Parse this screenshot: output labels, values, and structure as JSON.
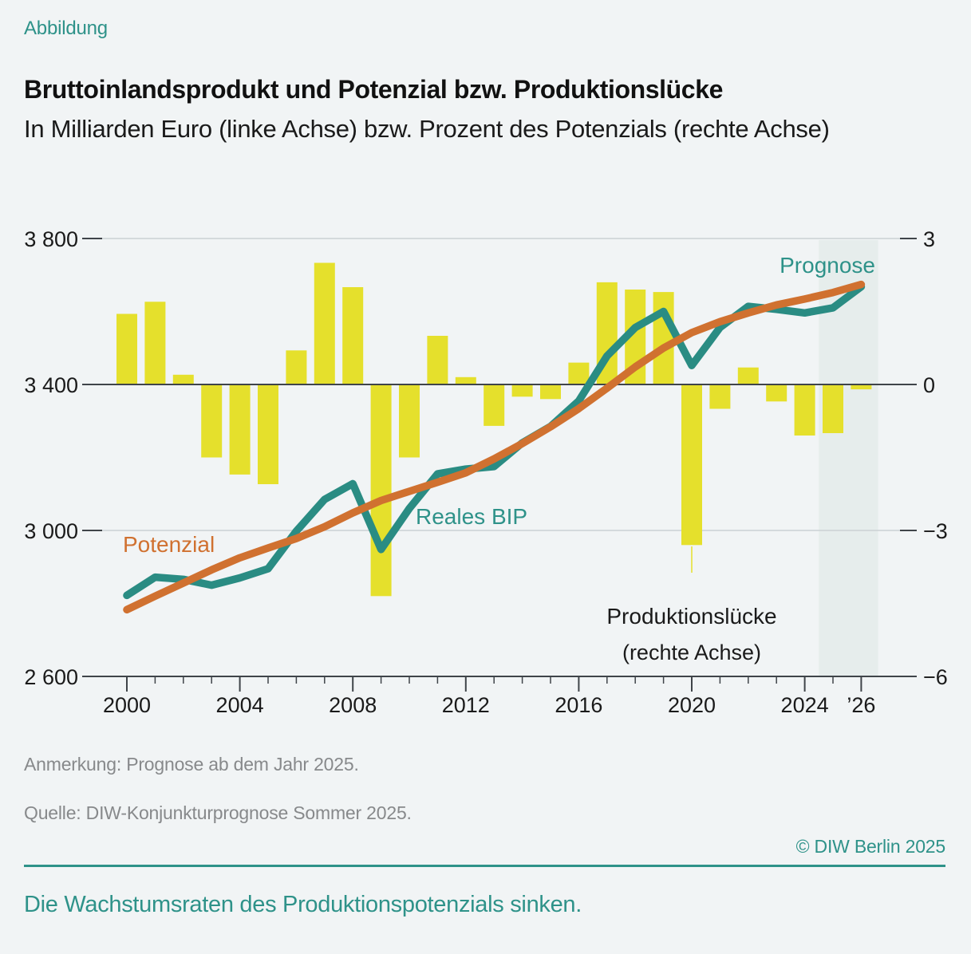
{
  "header": {
    "kicker": "Abbildung",
    "title": "Bruttoinlandsprodukt und Potenzial bzw. Produktionslücke",
    "subtitle": "In Milliarden Euro (linke Achse) bzw. Prozent des Potenzials (rechte Achse)"
  },
  "footer": {
    "note": "Anmerkung: Prognose ab dem Jahr 2025.",
    "source": "Quelle: DIW-Konjunkturprognose Sommer 2025.",
    "copyright": "© DIW Berlin 2025",
    "takeaway": "Die Wachstumsraten des Produktionspotenzials sinken."
  },
  "colors": {
    "background": "#f1f4f5",
    "teal": "#2e9289",
    "teal_line": "#2a8c83",
    "orange": "#d07130",
    "bar_yellow": "#e5e02c",
    "dark_text": "#1a1a1a",
    "axis_dark": "#3f4449",
    "gridline": "#cbd1d3",
    "gray_text": "#87898b",
    "forecast_band": "#e6edec"
  },
  "chart_data": {
    "type": "bar",
    "subtype": "combo-bar-line-dual-axis",
    "title": "Bruttoinlandsprodukt und Potenzial bzw. Produktionslücke",
    "xlabel": "",
    "ylabel_left": "Milliarden Euro",
    "ylabel_right": "Prozent des Potenzials",
    "x": [
      2000,
      2001,
      2002,
      2003,
      2004,
      2005,
      2006,
      2007,
      2008,
      2009,
      2010,
      2011,
      2012,
      2013,
      2014,
      2015,
      2016,
      2017,
      2018,
      2019,
      2020,
      2021,
      2022,
      2023,
      2024,
      2025,
      2026
    ],
    "series": [
      {
        "name": "Produktionslücke",
        "type": "bar",
        "axis": "right",
        "unit": "Prozent des Potenzials",
        "values": [
          1.45,
          1.7,
          0.2,
          -1.5,
          -1.85,
          -2.05,
          0.7,
          2.5,
          2.0,
          -4.35,
          -1.5,
          1.0,
          0.15,
          -0.85,
          -0.25,
          -0.3,
          0.45,
          2.1,
          1.95,
          1.9,
          -3.3,
          -0.5,
          0.35,
          -0.35,
          -1.05,
          -1.0,
          -0.1
        ]
      },
      {
        "name": "Reales BIP",
        "type": "line",
        "axis": "left",
        "unit": "Milliarden Euro",
        "values": [
          2822,
          2872,
          2866,
          2850,
          2870,
          2895,
          2998,
          3085,
          3128,
          2948,
          3060,
          3155,
          3168,
          3175,
          3240,
          3285,
          3355,
          3478,
          3556,
          3600,
          3452,
          3556,
          3614,
          3606,
          3596,
          3610,
          3668
        ]
      },
      {
        "name": "Potenzial",
        "type": "line",
        "axis": "left",
        "unit": "Milliarden Euro",
        "values": [
          2783,
          2820,
          2856,
          2892,
          2925,
          2952,
          2978,
          3010,
          3048,
          3082,
          3107,
          3132,
          3158,
          3196,
          3238,
          3284,
          3334,
          3390,
          3448,
          3500,
          3542,
          3572,
          3596,
          3618,
          3634,
          3652,
          3674
        ]
      }
    ],
    "left_axis": {
      "ticks": [
        3800,
        3400,
        3000,
        2600
      ],
      "labels": [
        "3 800",
        "3 400",
        "3 000",
        "2 600"
      ],
      "range": [
        2600,
        3800
      ]
    },
    "right_axis": {
      "ticks": [
        3,
        0,
        -3,
        -6
      ],
      "labels": [
        "3",
        "0",
        "−3",
        "−6"
      ],
      "range": [
        -6,
        3
      ]
    },
    "x_axis": {
      "major_ticks": [
        2000,
        2004,
        2008,
        2012,
        2016,
        2020,
        2024,
        2026
      ],
      "labels": [
        "2000",
        "2004",
        "2008",
        "2012",
        "2016",
        "2020",
        "2024",
        "’26"
      ]
    },
    "annotations": {
      "prognose": "Prognose",
      "potenzial": "Potenzial",
      "reales_bip": "Reales BIP",
      "produktionsluecke": "Produktionslücke",
      "produktionsluecke_sub": "(rechte Achse)"
    },
    "forecast_band": {
      "from_year": 2024.5,
      "to_year": 2026.6,
      "note": "Prognose ab 2025"
    },
    "grid": "horizontal",
    "legend_position": "inline-annotations"
  }
}
